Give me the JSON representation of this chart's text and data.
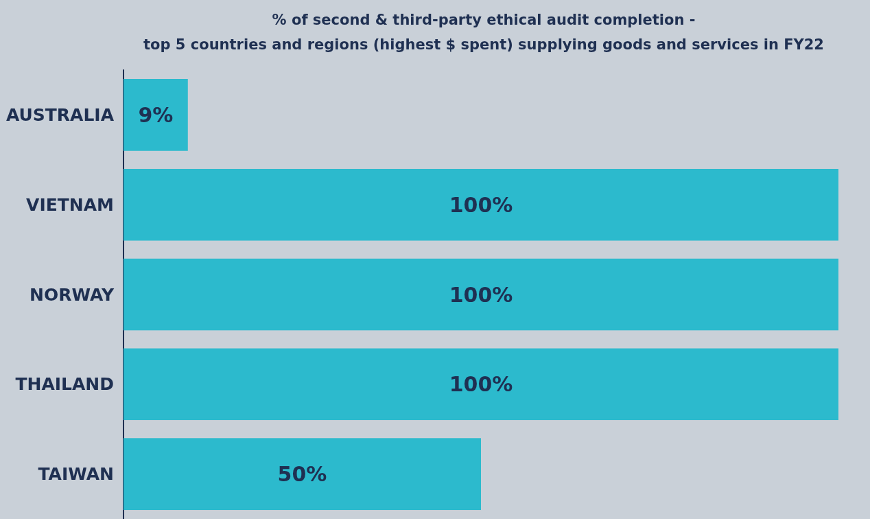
{
  "chart_data": {
    "type": "bar",
    "orientation": "horizontal",
    "title": "% of second & third-party ethical audit completion -\ntop 5 countries and regions (highest $ spent) supplying goods and services in FY22",
    "categories": [
      "AUSTRALIA",
      "VIETNAM",
      "NORWAY",
      "THAILAND",
      "TAIWAN"
    ],
    "values": [
      9,
      100,
      100,
      100,
      50
    ],
    "value_labels": [
      "9%",
      "100%",
      "100%",
      "100%",
      "50%"
    ],
    "color": "#2cbacd",
    "tick_labels": "y",
    "grid": false
  }
}
